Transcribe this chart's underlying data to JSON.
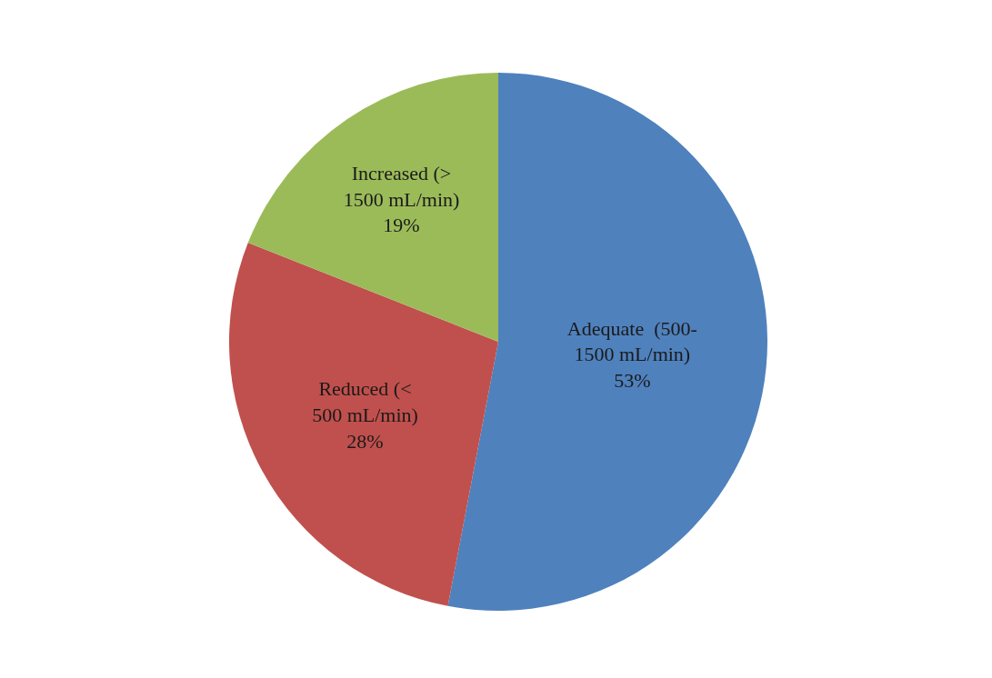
{
  "chart_data": {
    "type": "pie",
    "categories": [
      "Adequate  (500-1500 mL/min)",
      "Reduced (< 500 mL/min)",
      "Increased (> 1500 mL/min)"
    ],
    "values": [
      53,
      28,
      19
    ],
    "value_labels": [
      "53%",
      "28%",
      "19%"
    ],
    "colors": [
      "#4f81bd",
      "#c0504d",
      "#9bbb59"
    ],
    "legend": false
  }
}
